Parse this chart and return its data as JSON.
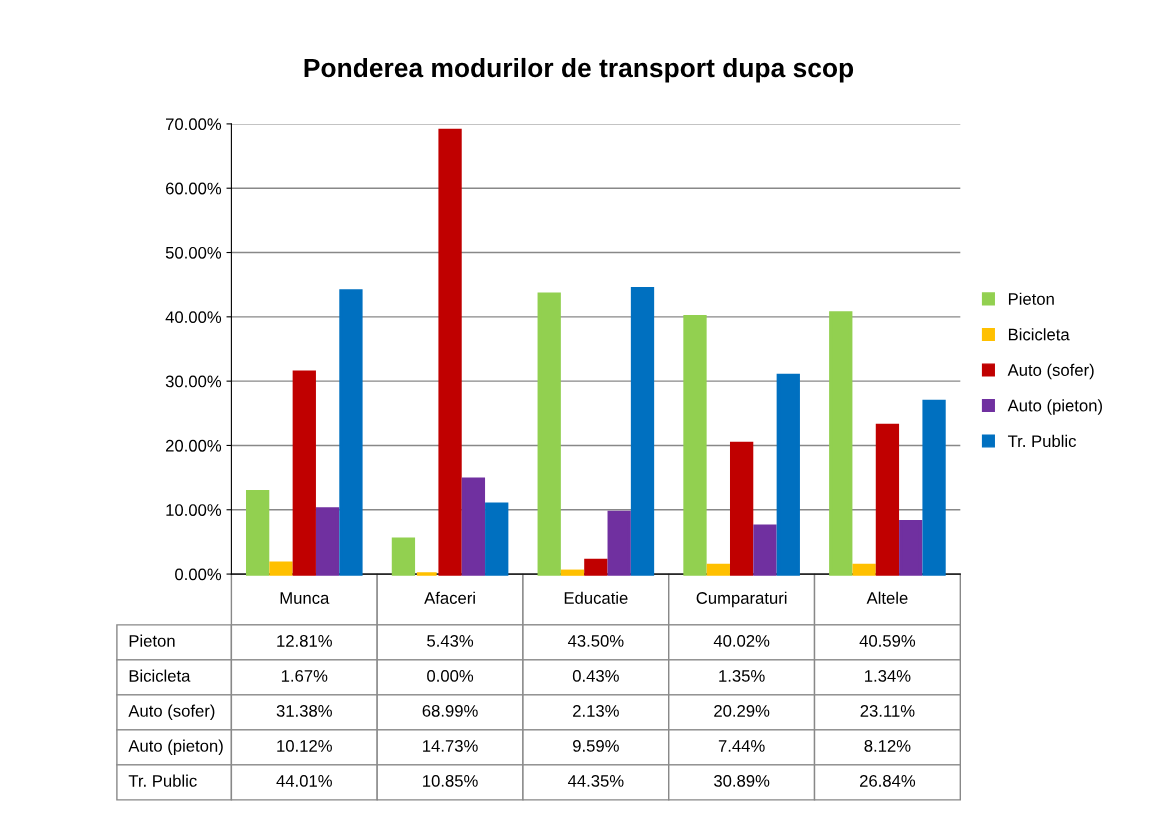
{
  "chart_data": {
    "type": "bar",
    "title": "Ponderea modurilor de transport dupa scop",
    "categories": [
      "Munca",
      "Afaceri",
      "Educatie",
      "Cumparaturi",
      "Altele"
    ],
    "series": [
      {
        "name": "Pieton",
        "color": "#92d050",
        "values": [
          12.81,
          5.43,
          43.5,
          40.02,
          40.59
        ],
        "value_labels": [
          "12.81%",
          "5.43%",
          "43.50%",
          "40.02%",
          "40.59%"
        ]
      },
      {
        "name": "Bicicleta",
        "color": "#ffc000",
        "values": [
          1.67,
          0.0,
          0.43,
          1.35,
          1.34
        ],
        "value_labels": [
          "1.67%",
          "0.00%",
          "0.43%",
          "1.35%",
          "1.34%"
        ]
      },
      {
        "name": "Auto (sofer)",
        "color": "#c00000",
        "values": [
          31.38,
          68.99,
          2.13,
          20.29,
          23.11
        ],
        "value_labels": [
          "31.38%",
          "68.99%",
          "2.13%",
          "20.29%",
          "23.11%"
        ]
      },
      {
        "name": "Auto (pieton)",
        "color": "#7030a0",
        "values": [
          10.12,
          14.73,
          9.59,
          7.44,
          8.12
        ],
        "value_labels": [
          "10.12%",
          "14.73%",
          "9.59%",
          "7.44%",
          "8.12%"
        ]
      },
      {
        "name": "Tr. Public",
        "color": "#0070c0",
        "values": [
          44.01,
          10.85,
          44.35,
          30.89,
          26.84
        ],
        "value_labels": [
          "44.01%",
          "10.85%",
          "44.35%",
          "30.89%",
          "26.84%"
        ]
      }
    ],
    "ylim": [
      0,
      70
    ],
    "yticks": [
      {
        "value": 0,
        "label": "0.00%"
      },
      {
        "value": 10,
        "label": "10.00%"
      },
      {
        "value": 20,
        "label": "20.00%"
      },
      {
        "value": 30,
        "label": "30.00%"
      },
      {
        "value": 40,
        "label": "40.00%"
      },
      {
        "value": 50,
        "label": "50.00%"
      },
      {
        "value": 60,
        "label": "60.00%"
      },
      {
        "value": 70,
        "label": "70.00%"
      }
    ],
    "grid": "y",
    "legend": "right"
  }
}
